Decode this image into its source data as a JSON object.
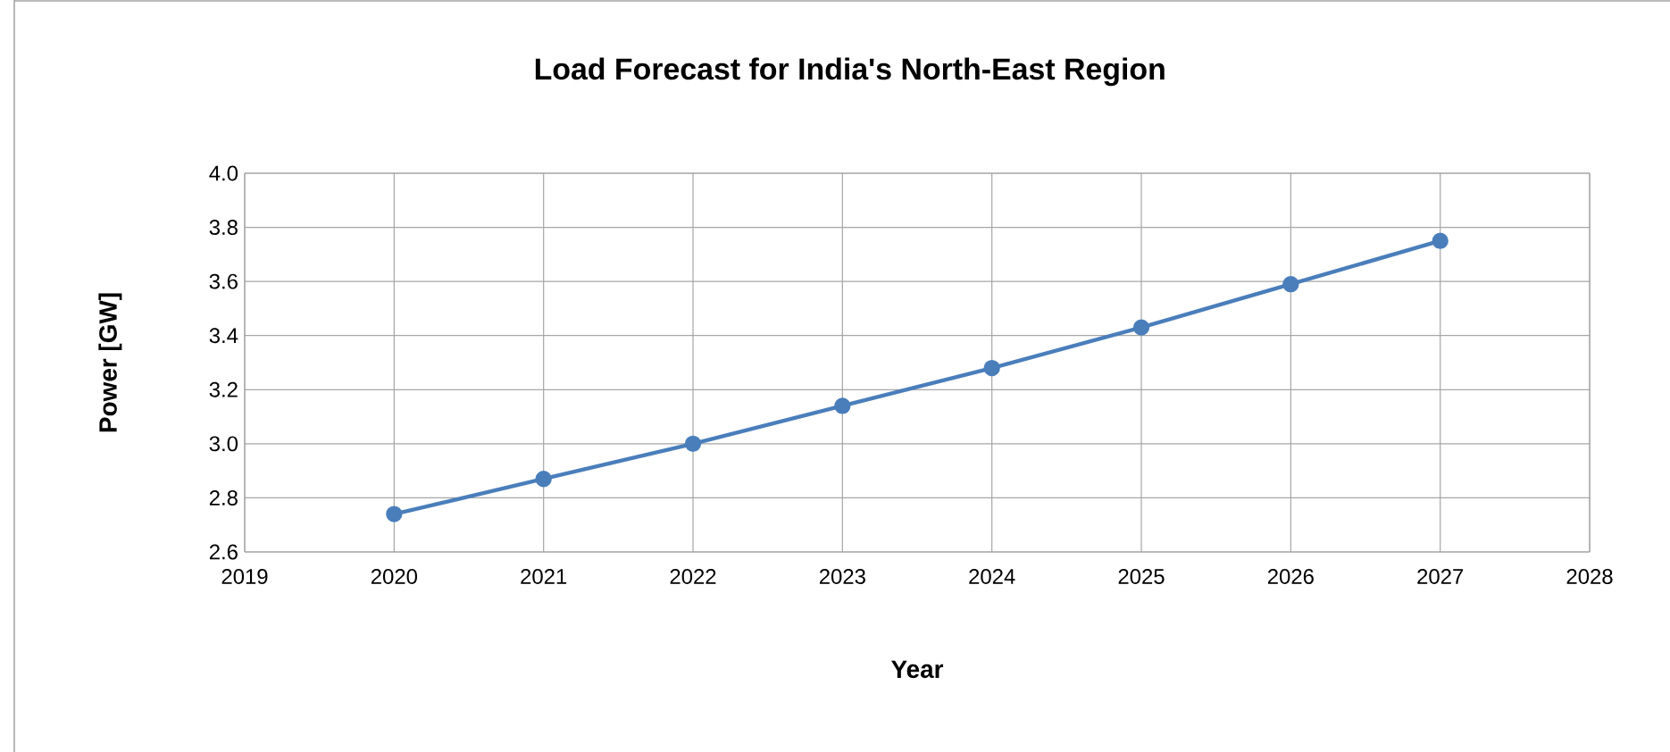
{
  "chart_data": {
    "type": "line",
    "title": "Load Forecast for India's North-East Region",
    "xlabel": "Year",
    "ylabel": "Power [GW]",
    "x": [
      2020,
      2021,
      2022,
      2023,
      2024,
      2025,
      2026,
      2027
    ],
    "series": [
      {
        "color": "#4a7ebb",
        "values": [
          2.74,
          2.87,
          3.0,
          3.14,
          3.28,
          3.43,
          3.59,
          3.75
        ]
      }
    ],
    "xlim": [
      2019,
      2028
    ],
    "xticks": [
      2019,
      2020,
      2021,
      2022,
      2023,
      2024,
      2025,
      2026,
      2027,
      2028
    ],
    "ylim": [
      2.6,
      4.0
    ],
    "yticks": [
      {
        "value": 2.6,
        "label": "2.6"
      },
      {
        "value": 2.8,
        "label": "2.8"
      },
      {
        "value": 3.0,
        "label": "3.0"
      },
      {
        "value": 3.2,
        "label": "3.2"
      },
      {
        "value": 3.4,
        "label": "3.4"
      },
      {
        "value": 3.6,
        "label": "3.6"
      },
      {
        "value": 3.8,
        "label": "3.8"
      },
      {
        "value": 4.0,
        "label": "4.0"
      }
    ],
    "grid": true,
    "marker": "circle",
    "line_style": "solid"
  }
}
